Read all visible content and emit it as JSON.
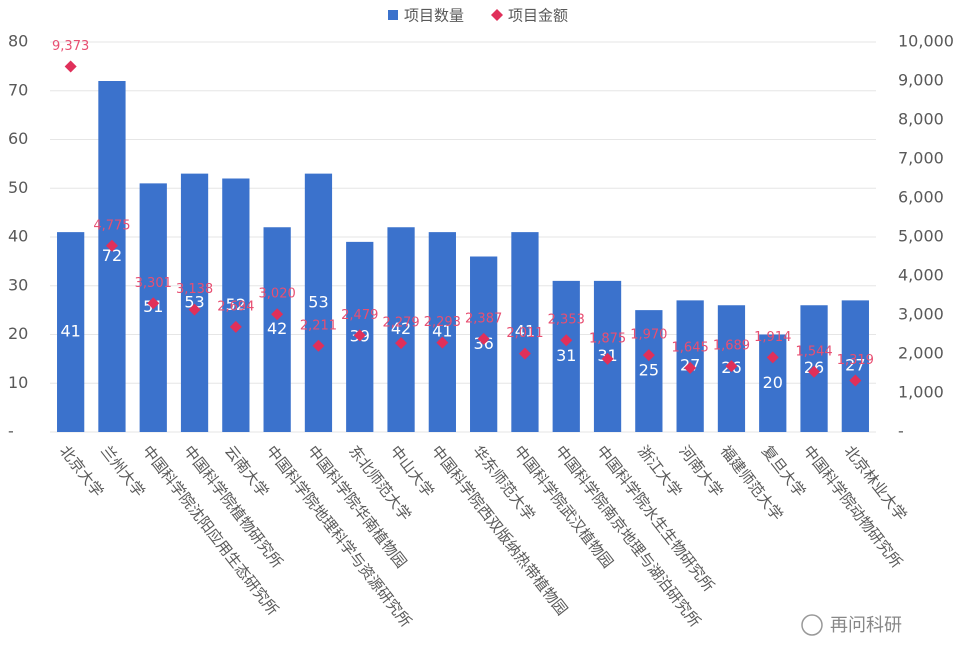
{
  "chart_data": {
    "type": "bar+scatter",
    "categories": [
      "北京大学",
      "兰州大学",
      "中国科学院沈阳应用生态研究所",
      "中国科学院植物研究所",
      "云南大学",
      "中国科学院地理科学与资源研究所",
      "中国科学院华南植物园",
      "东北师范大学",
      "中山大学",
      "中国科学院西双版纳热带植物园",
      "华东师范大学",
      "中国科学院武汉植物园",
      "中国科学院南京地理与湖泊研究所",
      "中国科学院水生生物研究所",
      "浙江大学",
      "河南大学",
      "福建师范大学",
      "复旦大学",
      "中国科学院动物研究所",
      "北京林业大学"
    ],
    "series": [
      {
        "name": "项目数量",
        "type": "bar",
        "color": "#3b72cc",
        "values": [
          41,
          72,
          51,
          53,
          52,
          42,
          53,
          39,
          42,
          41,
          36,
          41,
          31,
          31,
          25,
          27,
          26,
          20,
          26,
          27
        ]
      },
      {
        "name": "项目金额",
        "type": "scatter",
        "axis": "y2",
        "color": "#e0305a",
        "values": [
          9373,
          4775,
          3301,
          3138,
          2694,
          3020,
          2211,
          2479,
          2279,
          2293,
          2387,
          2011,
          2353,
          1875,
          1970,
          1645,
          1689,
          1914,
          1544,
          1319
        ],
        "value_labels": [
          "9,373",
          "4,775",
          "3,301",
          "3,138",
          "2,694",
          "3,020",
          "2,211",
          "2,479",
          "2,279",
          "2,293",
          "2,387",
          "2,011",
          "2,353",
          "1,875",
          "1,970",
          "1,645",
          "1,689",
          "1,914",
          "1,544",
          "1,319"
        ]
      }
    ],
    "ylim": [
      0,
      80
    ],
    "yticks": [
      {
        "value": 0,
        "label": "-"
      },
      10,
      20,
      30,
      40,
      50,
      60,
      70,
      80
    ],
    "y2lim": [
      0,
      10000
    ],
    "y2ticks": [
      {
        "value": 0,
        "label": "-"
      },
      {
        "value": 1000,
        "label": "1,000"
      },
      {
        "value": 2000,
        "label": "2,000"
      },
      {
        "value": 3000,
        "label": "3,000"
      },
      {
        "value": 4000,
        "label": "4,000"
      },
      {
        "value": 5000,
        "label": "5,000"
      },
      {
        "value": 6000,
        "label": "6,000"
      },
      {
        "value": 7000,
        "label": "7,000"
      },
      {
        "value": 8000,
        "label": "8,000"
      },
      {
        "value": 9000,
        "label": "9,000"
      },
      {
        "value": 10000,
        "label": "10,000"
      }
    ],
    "grid": true,
    "legend": "top",
    "watermark": "再问科研"
  }
}
